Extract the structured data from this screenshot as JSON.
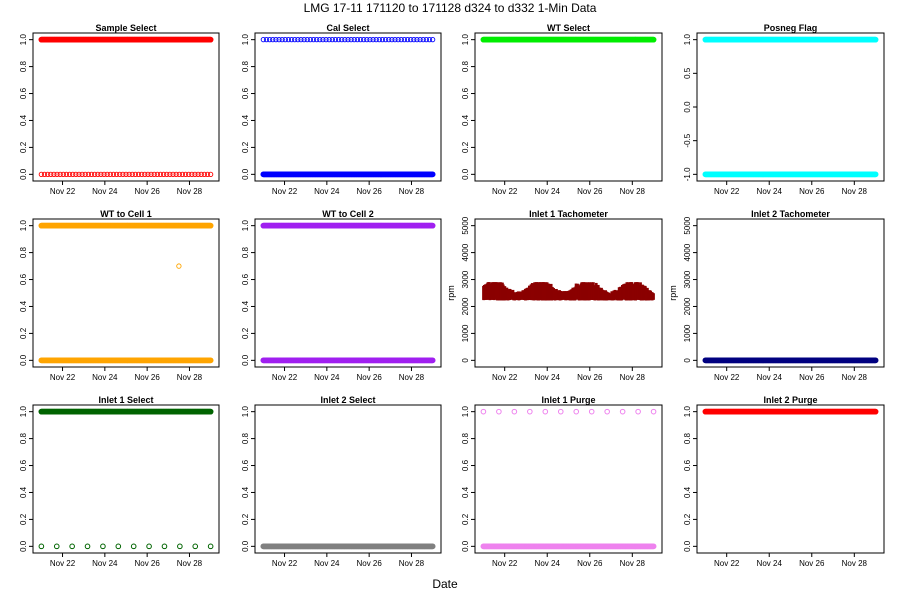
{
  "figure": {
    "title": "LMG   17-11    171120 to 171128    d324 to d332   1-Min Data",
    "xlabel": "Date"
  },
  "chart_data": [
    {
      "type": "scatter",
      "title": "Sample Select",
      "color": "#ff0000",
      "ylim": [
        0,
        1
      ],
      "yticks": [
        "0.0",
        "0.2",
        "0.4",
        "0.6",
        "0.8",
        "1.0"
      ],
      "xticks": [
        "Nov 22",
        "Nov 24",
        "Nov 26",
        "Nov 28"
      ],
      "ylabel": "",
      "series": [
        {
          "x": [
            "Nov 21",
            "Nov 29"
          ],
          "y": [
            1,
            1
          ],
          "style": "dense"
        },
        {
          "x": [
            "Nov 21",
            "Nov 29"
          ],
          "y": [
            0,
            0
          ],
          "style": "sparse"
        }
      ]
    },
    {
      "type": "scatter",
      "title": "Cal Select",
      "color": "#0000ff",
      "ylim": [
        0,
        1
      ],
      "yticks": [
        "0.0",
        "0.2",
        "0.4",
        "0.6",
        "0.8",
        "1.0"
      ],
      "xticks": [
        "Nov 22",
        "Nov 24",
        "Nov 26",
        "Nov 28"
      ],
      "ylabel": "",
      "series": [
        {
          "x": [
            "Nov 21",
            "Nov 29"
          ],
          "y": [
            1,
            1
          ],
          "style": "sparse"
        },
        {
          "x": [
            "Nov 21",
            "Nov 29"
          ],
          "y": [
            0,
            0
          ],
          "style": "dense"
        }
      ]
    },
    {
      "type": "scatter",
      "title": "WT Select",
      "color": "#00ee00",
      "ylim": [
        0,
        1
      ],
      "yticks": [
        "0.0",
        "0.2",
        "0.4",
        "0.6",
        "0.8",
        "1.0"
      ],
      "xticks": [
        "Nov 22",
        "Nov 24",
        "Nov 26",
        "Nov 28"
      ],
      "ylabel": "",
      "series": [
        {
          "x": [
            "Nov 21",
            "Nov 29"
          ],
          "y": [
            1,
            1
          ],
          "style": "dense"
        }
      ]
    },
    {
      "type": "scatter",
      "title": "Posneg Flag",
      "color": "#00ffff",
      "ylim": [
        -1,
        1
      ],
      "yticks": [
        "-1.0",
        "-0.5",
        "0.0",
        "0.5",
        "1.0"
      ],
      "xticks": [
        "Nov 22",
        "Nov 24",
        "Nov 26",
        "Nov 28"
      ],
      "ylabel": "",
      "series": [
        {
          "x": [
            "Nov 21",
            "Nov 29"
          ],
          "y": [
            1,
            1
          ],
          "style": "dense"
        },
        {
          "x": [
            "Nov 21",
            "Nov 29"
          ],
          "y": [
            -1,
            -1
          ],
          "style": "dense"
        }
      ]
    },
    {
      "type": "scatter",
      "title": "WT to Cell 1",
      "color": "#ffa500",
      "ylim": [
        0,
        1
      ],
      "yticks": [
        "0.0",
        "0.2",
        "0.4",
        "0.6",
        "0.8",
        "1.0"
      ],
      "xticks": [
        "Nov 22",
        "Nov 24",
        "Nov 26",
        "Nov 28"
      ],
      "ylabel": "",
      "series": [
        {
          "x": [
            "Nov 21",
            "Nov 29"
          ],
          "y": [
            1,
            1
          ],
          "style": "dense"
        },
        {
          "x": [
            "Nov 21",
            "Nov 29"
          ],
          "y": [
            0,
            0
          ],
          "style": "dense"
        },
        {
          "x": [
            "Nov 27.5"
          ],
          "y": [
            0.7
          ],
          "style": "single"
        }
      ]
    },
    {
      "type": "scatter",
      "title": "WT to Cell 2",
      "color": "#a020f0",
      "ylim": [
        0,
        1
      ],
      "yticks": [
        "0.0",
        "0.2",
        "0.4",
        "0.6",
        "0.8",
        "1.0"
      ],
      "xticks": [
        "Nov 22",
        "Nov 24",
        "Nov 26",
        "Nov 28"
      ],
      "ylabel": "",
      "series": [
        {
          "x": [
            "Nov 21",
            "Nov 29"
          ],
          "y": [
            1,
            1
          ],
          "style": "dense"
        },
        {
          "x": [
            "Nov 21",
            "Nov 29"
          ],
          "y": [
            0,
            0
          ],
          "style": "dense"
        }
      ]
    },
    {
      "type": "scatter",
      "title": "Inlet 1 Tachometer",
      "color": "#8b0000",
      "ylim": [
        0,
        5000
      ],
      "yticks": [
        "0",
        "1000",
        "2000",
        "3000",
        "4000",
        "5000"
      ],
      "xticks": [
        "Nov 22",
        "Nov 24",
        "Nov 26",
        "Nov 28"
      ],
      "ylabel": "rpm",
      "series": [
        {
          "x": [
            "Nov 21",
            "Nov 29"
          ],
          "y": [
            2300,
            2900
          ],
          "style": "band"
        }
      ]
    },
    {
      "type": "scatter",
      "title": "Inlet 2 Tachometer",
      "color": "#000080",
      "ylim": [
        0,
        5000
      ],
      "yticks": [
        "0",
        "1000",
        "2000",
        "3000",
        "4000",
        "5000"
      ],
      "xticks": [
        "Nov 22",
        "Nov 24",
        "Nov 26",
        "Nov 28"
      ],
      "ylabel": "rpm",
      "series": [
        {
          "x": [
            "Nov 21",
            "Nov 29"
          ],
          "y": [
            0,
            0
          ],
          "style": "dense"
        }
      ]
    },
    {
      "type": "scatter",
      "title": "Inlet 1 Select",
      "color": "#006400",
      "ylim": [
        0,
        1
      ],
      "yticks": [
        "0.0",
        "0.2",
        "0.4",
        "0.6",
        "0.8",
        "1.0"
      ],
      "xticks": [
        "Nov 22",
        "Nov 24",
        "Nov 26",
        "Nov 28"
      ],
      "ylabel": "",
      "series": [
        {
          "x": [
            "Nov 21",
            "Nov 29"
          ],
          "y": [
            1,
            1
          ],
          "style": "dense"
        },
        {
          "x": [
            "Nov 21",
            "Nov 29"
          ],
          "y": [
            0,
            0
          ],
          "style": "clusters"
        }
      ]
    },
    {
      "type": "scatter",
      "title": "Inlet 2 Select",
      "color": "#808080",
      "ylim": [
        0,
        1
      ],
      "yticks": [
        "0.0",
        "0.2",
        "0.4",
        "0.6",
        "0.8",
        "1.0"
      ],
      "xticks": [
        "Nov 22",
        "Nov 24",
        "Nov 26",
        "Nov 28"
      ],
      "ylabel": "",
      "series": [
        {
          "x": [
            "Nov 21",
            "Nov 29"
          ],
          "y": [
            0,
            0
          ],
          "style": "dense"
        }
      ]
    },
    {
      "type": "scatter",
      "title": "Inlet 1 Purge",
      "color": "#ee82ee",
      "ylim": [
        0,
        1
      ],
      "yticks": [
        "0.0",
        "0.2",
        "0.4",
        "0.6",
        "0.8",
        "1.0"
      ],
      "xticks": [
        "Nov 22",
        "Nov 24",
        "Nov 26",
        "Nov 28"
      ],
      "ylabel": "",
      "series": [
        {
          "x": [
            "Nov 21",
            "Nov 29"
          ],
          "y": [
            1,
            1
          ],
          "style": "clusters"
        },
        {
          "x": [
            "Nov 21",
            "Nov 29"
          ],
          "y": [
            0,
            0
          ],
          "style": "dense"
        }
      ]
    },
    {
      "type": "scatter",
      "title": "Inlet 2 Purge",
      "color": "#ff0000",
      "ylim": [
        0,
        1
      ],
      "yticks": [
        "0.0",
        "0.2",
        "0.4",
        "0.6",
        "0.8",
        "1.0"
      ],
      "xticks": [
        "Nov 22",
        "Nov 24",
        "Nov 26",
        "Nov 28"
      ],
      "ylabel": "",
      "series": [
        {
          "x": [
            "Nov 21",
            "Nov 29"
          ],
          "y": [
            1,
            1
          ],
          "style": "dense"
        }
      ]
    }
  ]
}
